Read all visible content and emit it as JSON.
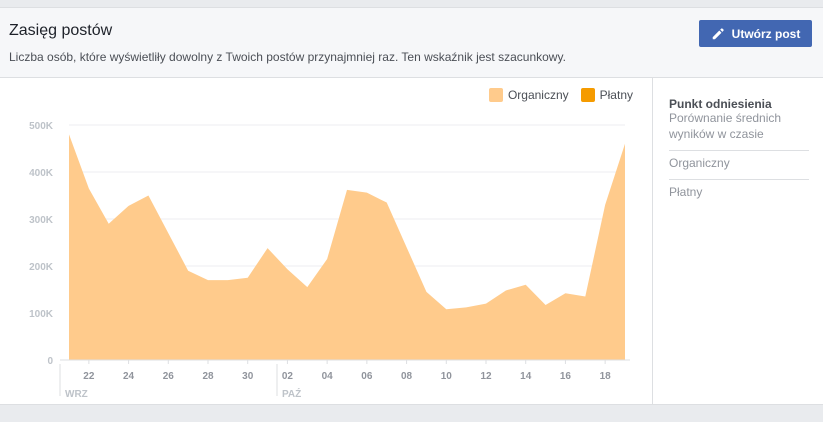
{
  "header": {
    "title": "Zasięg postów",
    "subtitle": "Liczba osób, które wyświetliły dowolny z Twoich postów przynajmniej raz. Ten wskaźnik jest szacunkowy.",
    "create_button_label": "Utwórz post",
    "create_button_icon": "pencil-icon"
  },
  "side": {
    "title": "Punkt odniesienia",
    "description": "Porównanie średnich wyników w czasie",
    "items": [
      "Organiczny",
      "Płatny"
    ]
  },
  "colors": {
    "organic": "#ffcb8c",
    "paid": "#f59b00",
    "button": "#4267b2"
  },
  "chart_data": {
    "type": "area",
    "legend": [
      {
        "name": "Organiczny",
        "color": "#ffcb8c"
      },
      {
        "name": "Płatny",
        "color": "#f59b00"
      }
    ],
    "legend_position": "top-right",
    "grid": true,
    "ylim": [
      0,
      500000
    ],
    "y_ticks": [
      {
        "value": 0,
        "label": "0"
      },
      {
        "value": 100000,
        "label": "100K"
      },
      {
        "value": 200000,
        "label": "200K"
      },
      {
        "value": 300000,
        "label": "300K"
      },
      {
        "value": 400000,
        "label": "400K"
      },
      {
        "value": 500000,
        "label": "500K"
      }
    ],
    "x_ticks": [
      "22",
      "24",
      "26",
      "28",
      "30",
      "02",
      "04",
      "06",
      "08",
      "10",
      "12",
      "14",
      "16",
      "18"
    ],
    "month_labels": [
      "WRZ",
      "PAŹ"
    ],
    "series": [
      {
        "name": "Organiczny",
        "values": [
          480000,
          365000,
          290000,
          328000,
          350000,
          270000,
          190000,
          170000,
          170000,
          175000,
          238000,
          193000,
          155000,
          215000,
          362000,
          356000,
          335000,
          240000,
          145000,
          108000,
          112000,
          120000,
          148000,
          160000,
          117000,
          142000,
          135000,
          330000,
          460000
        ]
      }
    ]
  }
}
